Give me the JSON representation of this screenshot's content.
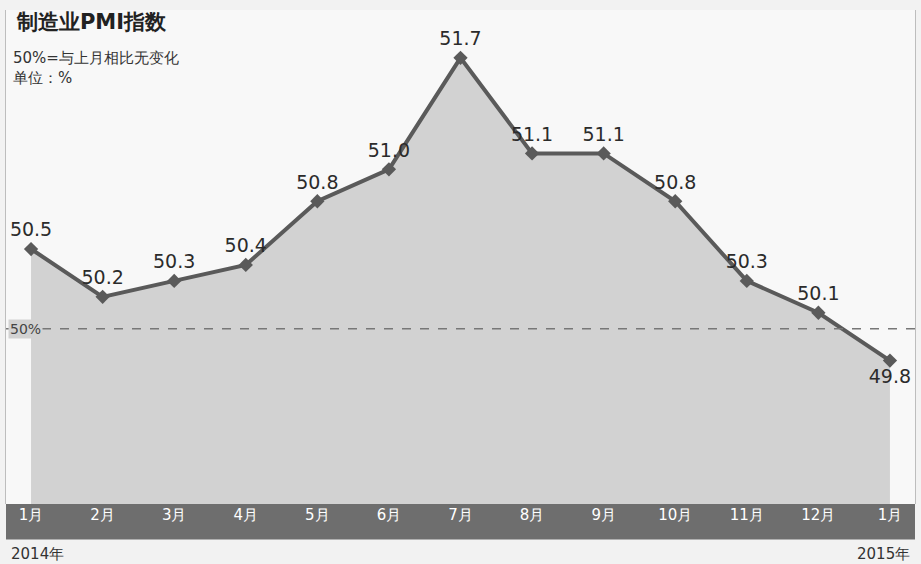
{
  "chart_data": {
    "type": "line",
    "title": "制造业PMI指数",
    "subtitle": [
      "50%=与上月相比无变化",
      "单位：%"
    ],
    "categories": [
      "1月",
      "2月",
      "3月",
      "4月",
      "5月",
      "6月",
      "7月",
      "8月",
      "9月",
      "10月",
      "11月",
      "12月",
      "1月"
    ],
    "year_labels": [
      {
        "index": 0,
        "label": "2014年"
      },
      {
        "index": 12,
        "label": "2015年"
      }
    ],
    "values": [
      50.5,
      50.2,
      50.3,
      50.4,
      50.8,
      51.0,
      51.7,
      51.1,
      51.1,
      50.8,
      50.3,
      50.1,
      49.8
    ],
    "value_labels": [
      "50.5",
      "50.2",
      "50.3",
      "50.4",
      "50.8",
      "51.0",
      "51.7",
      "51.1",
      "51.1",
      "50.8",
      "50.3",
      "50.1",
      "49.8"
    ],
    "data_labels": true,
    "reference_line": {
      "value": 50,
      "label": "50%",
      "line_style": "dashed"
    },
    "ylim": [
      48.9,
      52.0
    ],
    "yticks": [],
    "tick_labels": "x",
    "grid": false,
    "color": "#5a5a5a",
    "marker": "diamond",
    "line_style": "solid"
  }
}
